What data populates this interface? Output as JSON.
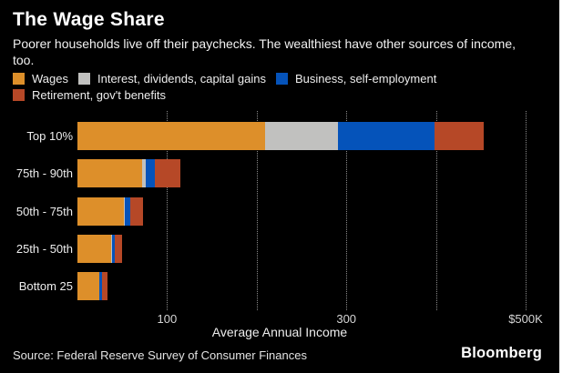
{
  "header": {
    "title": "The Wage Share",
    "subtitle": "Poorer households live off their paychecks. The wealthiest have other sources of income, too."
  },
  "chart_data": {
    "type": "bar",
    "orientation": "horizontal",
    "stacked": true,
    "title": "The Wage Share",
    "xlabel": "Average Annual Income",
    "units": "thousands of USD",
    "xlim": [
      0,
      537
    ],
    "grid": "vertical-dotted",
    "legend_position": "top",
    "categories": [
      "Top 10%",
      "75th - 90th",
      "50th - 75th",
      "25th - 50th",
      "Bottom 25"
    ],
    "series": [
      {
        "name": "Wages",
        "color": "#DD8F2A",
        "values": [
          209,
          72,
          52,
          38,
          24
        ]
      },
      {
        "name": "Interest, dividends, capital gains",
        "color": "#C1C1BF",
        "values": [
          82,
          4,
          1,
          0.5,
          0.5
        ]
      },
      {
        "name": "Business, self-employment",
        "color": "#0553BA",
        "values": [
          107,
          10,
          6,
          3,
          3
        ]
      },
      {
        "name": "Retirement, gov't benefits",
        "color": "#B64827",
        "values": [
          55,
          29,
          14,
          8,
          6
        ]
      }
    ],
    "category_totals": [
      453,
      115,
      73,
      49.5,
      33.5
    ],
    "x_gridlines": [
      100,
      200,
      300,
      400,
      500
    ],
    "x_ticks": [
      {
        "value": 100,
        "label": "100"
      },
      {
        "value": 300,
        "label": "300"
      },
      {
        "value": 500,
        "label": "$500K"
      }
    ]
  },
  "footer": {
    "source": "Source: Federal Reserve Survey of Consumer Finances",
    "brand": "Bloomberg"
  },
  "theme": {
    "background": "#000000",
    "page_background": "#FFFFFF",
    "text": "#FFFFFF",
    "gridline": "#8A8A8A"
  }
}
